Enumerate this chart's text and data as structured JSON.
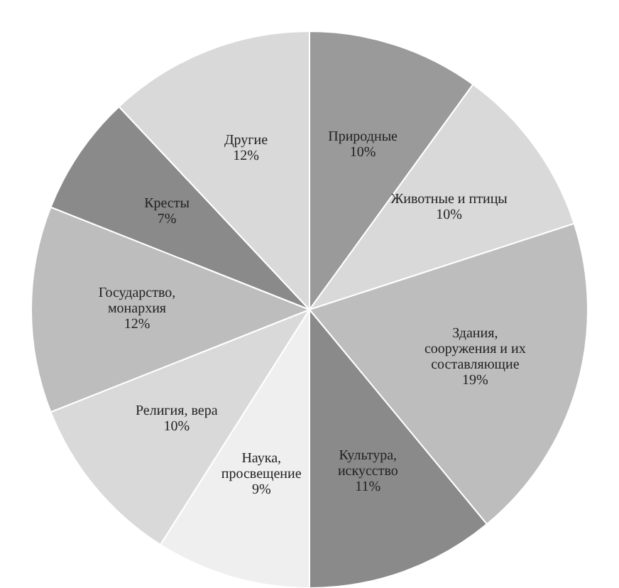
{
  "chart_data": {
    "type": "pie",
    "categories": [
      "Природные",
      "Животные и птицы",
      "Здания, сооружения и их составляющие",
      "Культура, искусство",
      "Наука, просвещение",
      "Религия, вера",
      "Государство, монархия",
      "Кресты",
      "Другие"
    ],
    "values": [
      10,
      10,
      19,
      11,
      9,
      10,
      12,
      7,
      12
    ],
    "value_labels": [
      "10%",
      "10%",
      "19%",
      "11%",
      "9%",
      "10%",
      "12%",
      "7%",
      "12%"
    ],
    "colors": [
      "#9a9a9a",
      "#d9d9d9",
      "#bdbdbd",
      "#8a8a8a",
      "#efefef",
      "#d9d9d9",
      "#bdbdbd",
      "#8a8a8a",
      "#d9d9d9"
    ]
  }
}
